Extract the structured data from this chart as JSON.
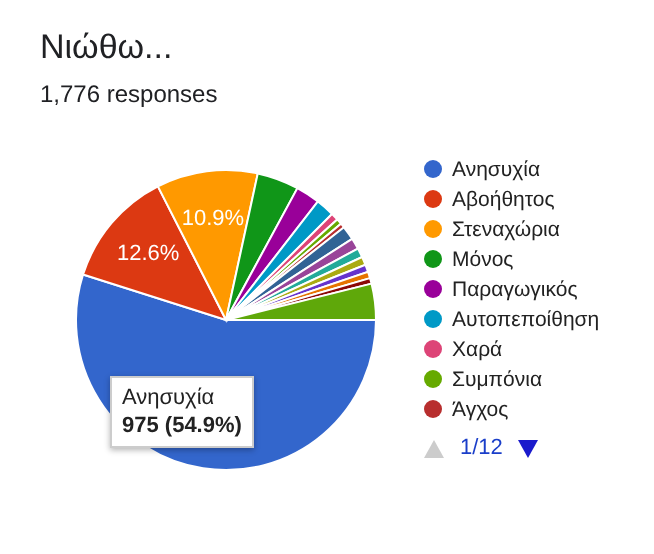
{
  "chart_data": {
    "type": "pie",
    "title": "Νιώθω...",
    "subtitle": "1,776 responses",
    "categories": [
      "Ανησυχία",
      "Αβοήθητος",
      "Στεναχώρια",
      "Μόνος",
      "Παραγωγικός",
      "Αυτοπεποίθηση",
      "Χαρά",
      "Συμπόνια",
      "Άγχος",
      null,
      null,
      null,
      null,
      null,
      null,
      null,
      null
    ],
    "values": [
      54.9,
      12.6,
      10.9,
      4.5,
      2.6,
      2.0,
      0.8,
      0.6,
      0.5,
      1.5,
      1.2,
      1.0,
      0.9,
      0.8,
      0.7,
      0.6,
      3.9
    ],
    "colors": [
      "#3366cc",
      "#dc3912",
      "#ff9900",
      "#109618",
      "#990099",
      "#0099c6",
      "#dd4477",
      "#66aa00",
      "#b82e2e",
      "#316395",
      "#994499",
      "#22aa99",
      "#aaaa11",
      "#6633cc",
      "#e67300",
      "#8b0707",
      "#5fa80a"
    ],
    "value_labels": [
      null,
      "12.6%",
      "10.9%",
      null,
      null,
      null,
      null,
      null,
      null,
      null,
      null,
      null,
      null,
      null,
      null,
      null,
      null
    ],
    "annotations": [
      "Ανησυχία",
      "975 (54.9%)",
      "1/12"
    ],
    "legend": "right"
  }
}
